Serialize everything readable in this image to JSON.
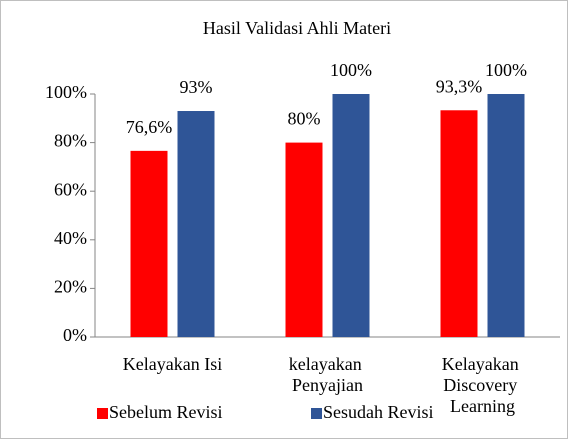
{
  "chart_data": {
    "type": "bar",
    "title": "Hasil Validasi Ahli Materi",
    "categories": [
      "Kelayakan Isi",
      "kelayakan Penyajian",
      "Kelayakan Discovery Learning"
    ],
    "series": [
      {
        "name": "Sebelum Revisi",
        "color": "#ff0000",
        "values": [
          76.6,
          80,
          93.3
        ],
        "value_labels": [
          "76,6%",
          "80%",
          "93,3%"
        ]
      },
      {
        "name": "Sesudah Revisi",
        "color": "#2f5597",
        "values": [
          93,
          100,
          100
        ],
        "value_labels": [
          "93%",
          "100%",
          "100%"
        ]
      }
    ],
    "ylim": [
      0,
      100
    ],
    "yticks": [
      {
        "value": 0,
        "label": "0%"
      },
      {
        "value": 20,
        "label": "20%"
      },
      {
        "value": 40,
        "label": "40%"
      },
      {
        "value": 60,
        "label": "60%"
      },
      {
        "value": 80,
        "label": "80%"
      },
      {
        "value": 100,
        "label": "100%"
      }
    ],
    "grid": false,
    "legend": "bottom"
  }
}
